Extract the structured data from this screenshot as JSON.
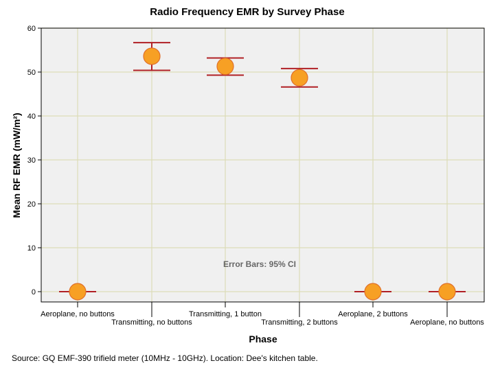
{
  "chart_data": {
    "type": "scatter",
    "title": "Radio Frequency EMR by Survey Phase",
    "xlabel": "Phase",
    "ylabel": "Mean RF EMR (mW/m²)",
    "ylim": [
      0,
      60
    ],
    "yticks": [
      0,
      10,
      20,
      30,
      40,
      50,
      60
    ],
    "grid": true,
    "categories": [
      "Aeroplane, no buttons",
      "Transmitting, no buttons",
      "Transmitting, 1 button",
      "Transmitting, 2 buttons",
      "Aeroplane, 2 buttons",
      "Aeroplane, no buttons"
    ],
    "series": [
      {
        "name": "Mean RF EMR",
        "values": [
          0,
          53.6,
          51.3,
          48.7,
          0,
          0
        ],
        "ci_low": [
          0,
          50.4,
          49.3,
          46.6,
          0,
          0
        ],
        "ci_high": [
          0,
          56.7,
          53.2,
          50.8,
          0,
          0
        ]
      }
    ],
    "annotation": "Error Bars: 95% CI",
    "colors": {
      "marker_fill": "#f7a024",
      "marker_stroke": "#e0702a",
      "error_bar": "#b01f24",
      "grid": "#dcdcb8",
      "plot_bg": "#f0f0f0"
    }
  },
  "footer": {
    "source": "Source: GQ EMF-390 trifield meter (10MHz - 10GHz). Location: Dee's kitchen table."
  }
}
